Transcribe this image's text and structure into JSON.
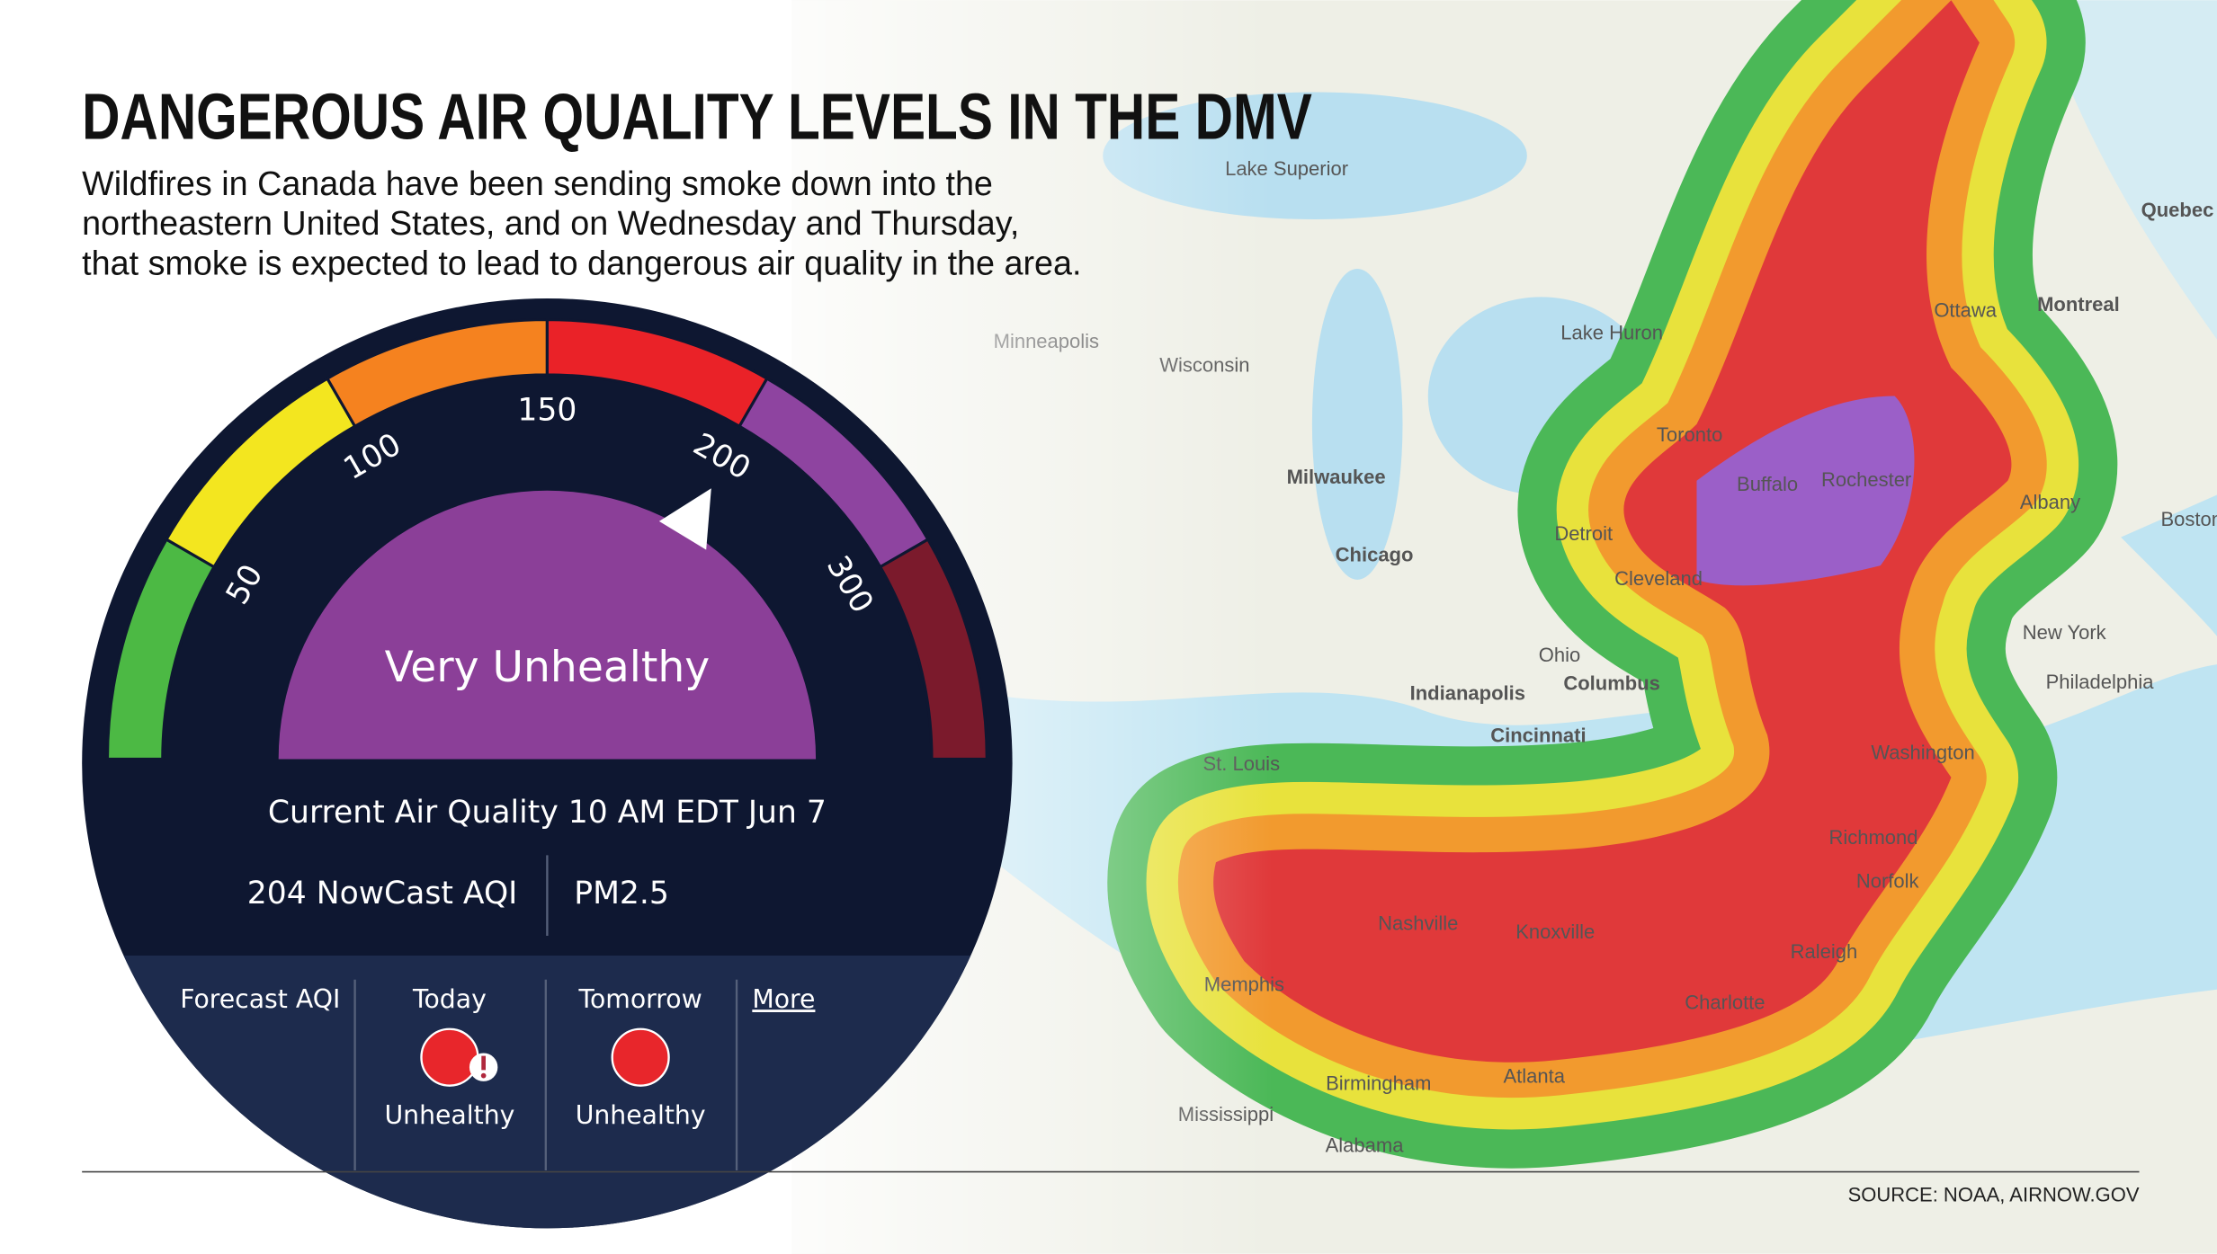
{
  "header": {
    "title": "DANGEROUS AIR QUALITY LEVELS IN THE DMV",
    "subtitle": [
      "Wildfires in Canada have been sending smoke down into the",
      "northeastern United States, and on Wednesday and Thursday,",
      "that smoke is expected to lead to dangerous air quality in the area."
    ]
  },
  "gauge": {
    "ticks": [
      50,
      100,
      150,
      200,
      300
    ],
    "category": "Very Unhealthy",
    "current": "Current Air Quality 10 AM EDT Jun 7",
    "reading": {
      "value": 204,
      "label": "204 NowCast AQI"
    },
    "pollutant": "PM2.5"
  },
  "forecast": {
    "label": "Forecast AQI",
    "days": [
      {
        "day": "Today",
        "level": "Unhealthy"
      },
      {
        "day": "Tomorrow",
        "level": "Unhealthy"
      }
    ],
    "more": "More"
  },
  "map": {
    "labels": [
      "Lake Superior",
      "Minneapolis",
      "Wisconsin",
      "Lake Huron",
      "Ottawa",
      "Montreal",
      "Quebec",
      "Toronto",
      "Milwaukee",
      "Chicago",
      "Detroit",
      "Cleveland",
      "Ohio",
      "Indianapolis",
      "Columbus",
      "Cincinnati",
      "St. Louis",
      "New York",
      "Philadelphia",
      "Washington",
      "Richmond",
      "Norfolk",
      "Nashville",
      "Knoxville",
      "Raleigh",
      "Charlotte",
      "Memphis",
      "Birmingham",
      "Atlanta",
      "Mississippi",
      "Alabama",
      "Boston",
      "Albany",
      "Rochester",
      "Buffalo"
    ]
  },
  "source": "SOURCE: NOAA, AIRNOW.GOV"
}
